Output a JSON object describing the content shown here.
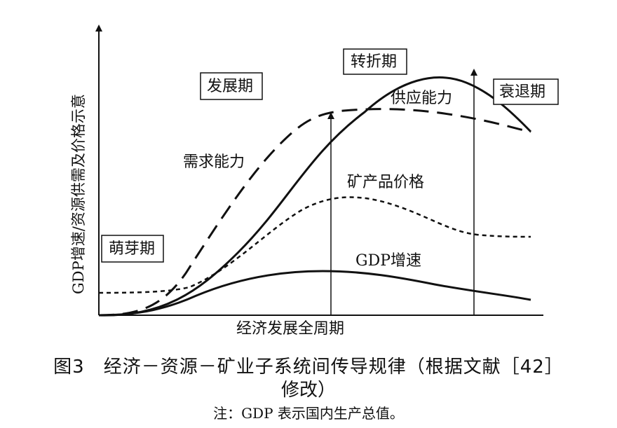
{
  "figure": {
    "y_axis_label": "GDP增速/资源供需及价格示意",
    "x_axis_label": "经济发展全周期",
    "phases": {
      "budding": "萌芽期",
      "development": "发展期",
      "turning": "转折期",
      "decline": "衰退期"
    },
    "curves": {
      "demand": "需求能力",
      "supply": "供应能力",
      "mineral_price": "矿产品价格",
      "gdp_growth": "GDP增速"
    }
  },
  "caption": {
    "line1": "图3　经济－资源－矿业子系统间传导规律（根据文献［42］",
    "line2": "修改）"
  },
  "note": "注：GDP 表示国内生产总值。"
}
